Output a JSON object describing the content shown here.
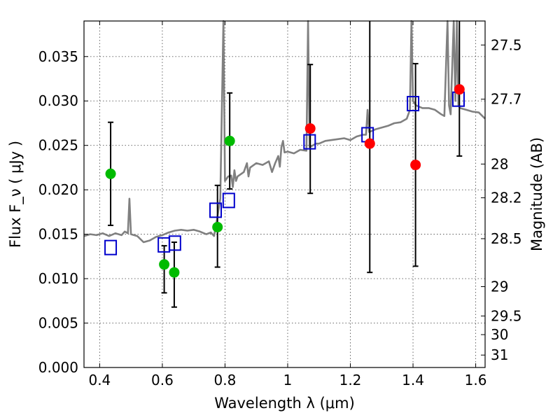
{
  "chart_data": {
    "type": "scatter",
    "title": "",
    "xlabel": "Wavelength  λ (μm)",
    "ylabel": "Flux  F_ν ( μJy )",
    "ylabel_right": "Magnitude (AB)",
    "xlim": [
      0.35,
      1.63
    ],
    "ylim": [
      0.0,
      0.039
    ],
    "grid": true,
    "x_ticks": [
      0.4,
      0.6,
      0.8,
      1.0,
      1.2,
      1.4,
      1.6
    ],
    "x_tick_labels": [
      "0.4",
      "0.6",
      "0.8",
      "1",
      "1.2",
      "1.4",
      "1.6"
    ],
    "y_ticks": [
      0.0,
      0.005,
      0.01,
      0.015,
      0.02,
      0.025,
      0.03,
      0.035
    ],
    "y_tick_labels": [
      "0.000",
      "0.005",
      "0.010",
      "0.015",
      "0.020",
      "0.025",
      "0.030",
      "0.035"
    ],
    "right_ticks": [
      {
        "label": "27.5",
        "flux": 0.0363
      },
      {
        "label": "27.7",
        "flux": 0.0302
      },
      {
        "label": "28",
        "flux": 0.0229
      },
      {
        "label": "28.2",
        "flux": 0.0191
      },
      {
        "label": "28.5",
        "flux": 0.0145
      },
      {
        "label": "29",
        "flux": 0.0091
      },
      {
        "label": "29.5",
        "flux": 0.0058
      },
      {
        "label": "30",
        "flux": 0.0037
      },
      {
        "label": "31",
        "flux": 0.0014
      }
    ],
    "series": [
      {
        "kind": "line",
        "color": "#808080",
        "points": [
          [
            0.35,
            0.0148
          ],
          [
            0.37,
            0.015
          ],
          [
            0.39,
            0.0149
          ],
          [
            0.41,
            0.0151
          ],
          [
            0.43,
            0.0148
          ],
          [
            0.45,
            0.0151
          ],
          [
            0.47,
            0.0149
          ],
          [
            0.48,
            0.0153
          ],
          [
            0.49,
            0.0151
          ],
          [
            0.495,
            0.019
          ],
          [
            0.5,
            0.015
          ],
          [
            0.52,
            0.0148
          ],
          [
            0.54,
            0.0141
          ],
          [
            0.56,
            0.0143
          ],
          [
            0.58,
            0.0147
          ],
          [
            0.6,
            0.0149
          ],
          [
            0.62,
            0.0152
          ],
          [
            0.64,
            0.0154
          ],
          [
            0.66,
            0.0155
          ],
          [
            0.68,
            0.0154
          ],
          [
            0.7,
            0.0155
          ],
          [
            0.72,
            0.0153
          ],
          [
            0.74,
            0.015
          ],
          [
            0.755,
            0.0152
          ],
          [
            0.765,
            0.0148
          ],
          [
            0.775,
            0.0168
          ],
          [
            0.785,
            0.019
          ],
          [
            0.795,
            0.039
          ],
          [
            0.8,
            0.021
          ],
          [
            0.81,
            0.0215
          ],
          [
            0.82,
            0.0216
          ],
          [
            0.825,
            0.0203
          ],
          [
            0.83,
            0.0222
          ],
          [
            0.835,
            0.021
          ],
          [
            0.84,
            0.0215
          ],
          [
            0.86,
            0.022
          ],
          [
            0.87,
            0.023
          ],
          [
            0.875,
            0.0215
          ],
          [
            0.88,
            0.0225
          ],
          [
            0.9,
            0.023
          ],
          [
            0.92,
            0.0228
          ],
          [
            0.94,
            0.0232
          ],
          [
            0.95,
            0.022
          ],
          [
            0.96,
            0.023
          ],
          [
            0.97,
            0.0238
          ],
          [
            0.975,
            0.0226
          ],
          [
            0.98,
            0.0248
          ],
          [
            0.985,
            0.0255
          ],
          [
            0.99,
            0.0242
          ],
          [
            1.0,
            0.0243
          ],
          [
            1.02,
            0.0241
          ],
          [
            1.04,
            0.0245
          ],
          [
            1.06,
            0.0244
          ],
          [
            1.065,
            0.039
          ],
          [
            1.07,
            0.0248
          ],
          [
            1.09,
            0.0252
          ],
          [
            1.1,
            0.0252
          ],
          [
            1.12,
            0.0255
          ],
          [
            1.14,
            0.0256
          ],
          [
            1.16,
            0.0257
          ],
          [
            1.18,
            0.0258
          ],
          [
            1.2,
            0.0256
          ],
          [
            1.22,
            0.026
          ],
          [
            1.24,
            0.0262
          ],
          [
            1.25,
            0.0262
          ],
          [
            1.255,
            0.029
          ],
          [
            1.26,
            0.0265
          ],
          [
            1.28,
            0.0268
          ],
          [
            1.3,
            0.027
          ],
          [
            1.32,
            0.0272
          ],
          [
            1.34,
            0.0275
          ],
          [
            1.36,
            0.0276
          ],
          [
            1.38,
            0.028
          ],
          [
            1.39,
            0.029
          ],
          [
            1.395,
            0.039
          ],
          [
            1.4,
            0.03
          ],
          [
            1.41,
            0.0295
          ],
          [
            1.43,
            0.0292
          ],
          [
            1.45,
            0.0292
          ],
          [
            1.47,
            0.029
          ],
          [
            1.49,
            0.0285
          ],
          [
            1.5,
            0.0283
          ],
          [
            1.51,
            0.039
          ],
          [
            1.515,
            0.0295
          ],
          [
            1.52,
            0.0285
          ],
          [
            1.53,
            0.039
          ],
          [
            1.535,
            0.03
          ],
          [
            1.54,
            0.039
          ],
          [
            1.545,
            0.0295
          ],
          [
            1.55,
            0.0292
          ],
          [
            1.57,
            0.029
          ],
          [
            1.59,
            0.0288
          ],
          [
            1.61,
            0.0287
          ],
          [
            1.63,
            0.028
          ]
        ]
      },
      {
        "kind": "open-square",
        "color": "#0000cc",
        "points": [
          [
            0.435,
            0.0135
          ],
          [
            0.605,
            0.0138
          ],
          [
            0.64,
            0.014
          ],
          [
            0.77,
            0.0177
          ],
          [
            0.812,
            0.0188
          ],
          [
            1.07,
            0.0254
          ],
          [
            1.255,
            0.0262
          ],
          [
            1.4,
            0.0297
          ],
          [
            1.545,
            0.0302
          ]
        ]
      },
      {
        "kind": "filled-circle",
        "color": "#00bb00",
        "points": [
          [
            0.435,
            0.0218
          ],
          [
            0.606,
            0.0116
          ],
          [
            0.638,
            0.0107
          ],
          [
            0.776,
            0.0158
          ],
          [
            0.815,
            0.0255
          ]
        ]
      },
      {
        "kind": "filled-circle",
        "color": "#ff0000",
        "points": [
          [
            1.072,
            0.0269
          ],
          [
            1.262,
            0.0252
          ],
          [
            1.408,
            0.0228
          ],
          [
            1.548,
            0.0313
          ]
        ]
      },
      {
        "kind": "error-bar",
        "color": "#000000",
        "bars": [
          [
            0.435,
            0.016,
            0.0276
          ],
          [
            0.606,
            0.0084,
            0.0137
          ],
          [
            0.638,
            0.0068,
            0.0141
          ],
          [
            0.776,
            0.0113,
            0.0205
          ],
          [
            0.815,
            0.0201,
            0.0309
          ],
          [
            1.072,
            0.0196,
            0.0341
          ],
          [
            1.262,
            0.0107,
            0.039
          ],
          [
            1.408,
            0.0114,
            0.0342
          ],
          [
            1.548,
            0.0238,
            0.039
          ]
        ]
      }
    ]
  }
}
